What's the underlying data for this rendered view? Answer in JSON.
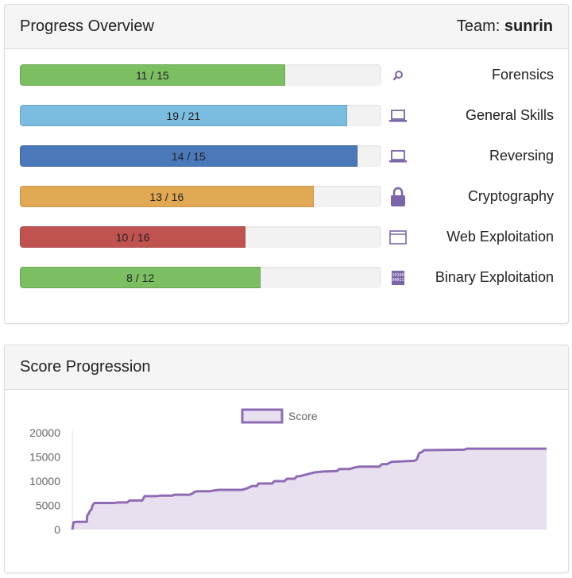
{
  "progress": {
    "title": "Progress Overview",
    "team_prefix": "Team:",
    "team_name": "sunrin",
    "categories": [
      {
        "name": "Forensics",
        "label": "11 / 15",
        "solved": 11,
        "total": 15,
        "color": "#7cbf62",
        "icon": "magnifier-icon"
      },
      {
        "name": "General Skills",
        "label": "19 / 21",
        "solved": 19,
        "total": 21,
        "color": "#7bbde0",
        "icon": "laptop-icon"
      },
      {
        "name": "Reversing",
        "label": "14 / 15",
        "solved": 14,
        "total": 15,
        "color": "#4a78b8",
        "icon": "laptop-icon"
      },
      {
        "name": "Cryptography",
        "label": "13 / 16",
        "solved": 13,
        "total": 16,
        "color": "#e2a954",
        "icon": "lock-icon"
      },
      {
        "name": "Web Exploitation",
        "label": "10 / 16",
        "solved": 10,
        "total": 16,
        "color": "#c0524f",
        "icon": "browser-window-icon"
      },
      {
        "name": "Binary Exploitation",
        "label": "8 / 12",
        "solved": 8,
        "total": 12,
        "color": "#7cbf62",
        "icon": "binary-icon"
      }
    ]
  },
  "score": {
    "title": "Score Progression"
  },
  "colors": {
    "icon": "#7b64a8",
    "line": "#8e6bb4",
    "fill": "#e8e0ef"
  },
  "chart_data": {
    "type": "area",
    "legend": [
      "Score"
    ],
    "legend_position": "top-center",
    "ylim": [
      0,
      20000
    ],
    "yticks": [
      "0",
      "5000",
      "10000",
      "15000",
      "20000"
    ],
    "grid": false,
    "series": [
      {
        "name": "Score",
        "x": [
          0,
          0.5,
          2,
          5.8,
          6,
          6.5,
          7,
          7.7,
          8,
          8.5,
          9,
          17,
          18,
          22,
          23,
          28,
          29,
          34,
          35,
          40,
          41,
          47,
          48,
          49,
          50,
          55,
          56,
          57,
          58,
          59,
          60,
          61,
          62,
          68,
          70,
          72,
          74,
          74.5,
          80,
          81,
          85,
          86,
          89,
          90,
          91,
          97,
          101,
          102,
          106,
          107,
          108,
          111,
          113,
          114,
          115,
          123,
          124,
          126,
          128,
          129,
          137,
          138,
          139,
          140,
          141,
          157,
          158,
          190
        ],
        "y": [
          0,
          1500,
          1600,
          1600,
          3000,
          3200,
          3800,
          4200,
          4800,
          5300,
          5500,
          5500,
          5600,
          5600,
          6000,
          6000,
          6900,
          6900,
          7000,
          7000,
          7200,
          7200,
          7400,
          7800,
          7900,
          7900,
          8000,
          8100,
          8150,
          8200,
          8200,
          8200,
          8200,
          8200,
          8500,
          9000,
          9000,
          9500,
          9500,
          10000,
          10000,
          10500,
          10500,
          11000,
          11000,
          11800,
          12000,
          12000,
          12100,
          12500,
          12500,
          12500,
          12800,
          12900,
          13000,
          13000,
          13500,
          13500,
          14000,
          14000,
          14200,
          14500,
          15800,
          16000,
          16400,
          16500,
          16700,
          16700
        ]
      }
    ]
  }
}
